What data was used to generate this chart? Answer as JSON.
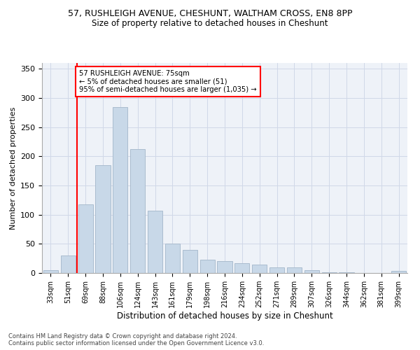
{
  "title_line1": "57, RUSHLEIGH AVENUE, CHESHUNT, WALTHAM CROSS, EN8 8PP",
  "title_line2": "Size of property relative to detached houses in Cheshunt",
  "xlabel": "Distribution of detached houses by size in Cheshunt",
  "ylabel": "Number of detached properties",
  "categories": [
    "33sqm",
    "51sqm",
    "69sqm",
    "88sqm",
    "106sqm",
    "124sqm",
    "143sqm",
    "161sqm",
    "179sqm",
    "198sqm",
    "216sqm",
    "234sqm",
    "252sqm",
    "271sqm",
    "289sqm",
    "307sqm",
    "326sqm",
    "344sqm",
    "362sqm",
    "381sqm",
    "399sqm"
  ],
  "values": [
    5,
    30,
    118,
    185,
    285,
    212,
    107,
    50,
    40,
    23,
    20,
    17,
    15,
    10,
    10,
    5,
    1,
    1,
    0,
    0,
    4
  ],
  "bar_color": "#c8d8e8",
  "bar_edge_color": "#aabcce",
  "red_line_x": 1.5,
  "annotation_text": "57 RUSHLEIGH AVENUE: 75sqm\n← 5% of detached houses are smaller (51)\n95% of semi-detached houses are larger (1,035) →",
  "annotation_box_color": "white",
  "annotation_box_edge": "red",
  "grid_color": "#d0d8e8",
  "background_color": "#eef2f8",
  "footer1": "Contains HM Land Registry data © Crown copyright and database right 2024.",
  "footer2": "Contains public sector information licensed under the Open Government Licence v3.0.",
  "ylim": [
    0,
    360
  ],
  "yticks": [
    0,
    50,
    100,
    150,
    200,
    250,
    300,
    350
  ]
}
